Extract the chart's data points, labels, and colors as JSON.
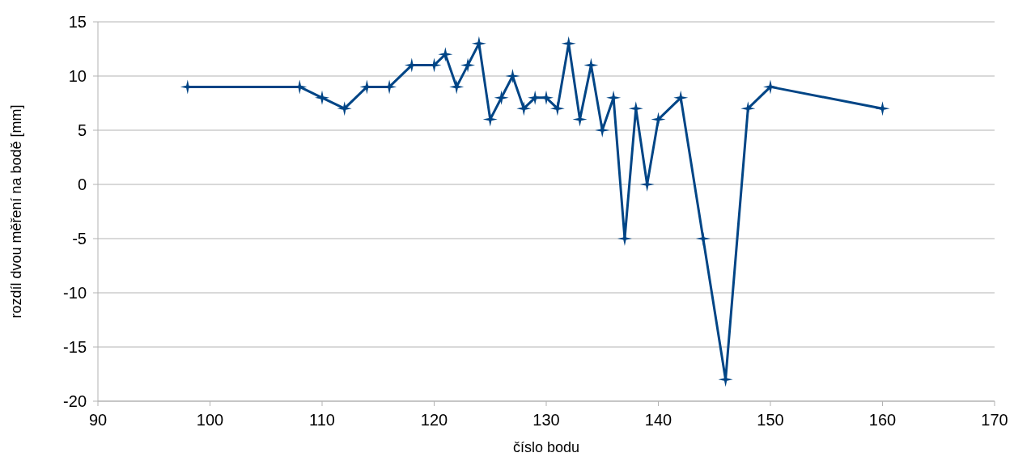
{
  "chart_data": {
    "type": "line",
    "xlabel": "číslo bodu",
    "ylabel": "rozdíl dvou měření na bodě [mm]",
    "x": [
      98,
      108,
      110,
      112,
      114,
      116,
      118,
      120,
      121,
      122,
      123,
      124,
      125,
      126,
      127,
      128,
      129,
      130,
      131,
      132,
      133,
      134,
      135,
      136,
      137,
      138,
      139,
      140,
      142,
      144,
      146,
      148,
      150,
      160
    ],
    "series": [
      {
        "color": "#004586",
        "values": [
          9,
          9,
          8,
          7,
          9,
          9,
          11,
          11,
          12,
          9,
          11,
          13,
          6,
          8,
          10,
          7,
          8,
          8,
          7,
          13,
          6,
          11,
          5,
          8,
          -5,
          7,
          0,
          6,
          8,
          -5,
          -18,
          7,
          9,
          7
        ]
      }
    ],
    "xlim": [
      90,
      170
    ],
    "xticks": [
      90,
      100,
      110,
      120,
      130,
      140,
      150,
      160,
      170
    ],
    "ylim": [
      -20,
      15
    ],
    "yticks": [
      -20,
      -15,
      -10,
      -5,
      0,
      5,
      10,
      15
    ],
    "grid": "y",
    "marker": "star",
    "line_style": "solid"
  }
}
